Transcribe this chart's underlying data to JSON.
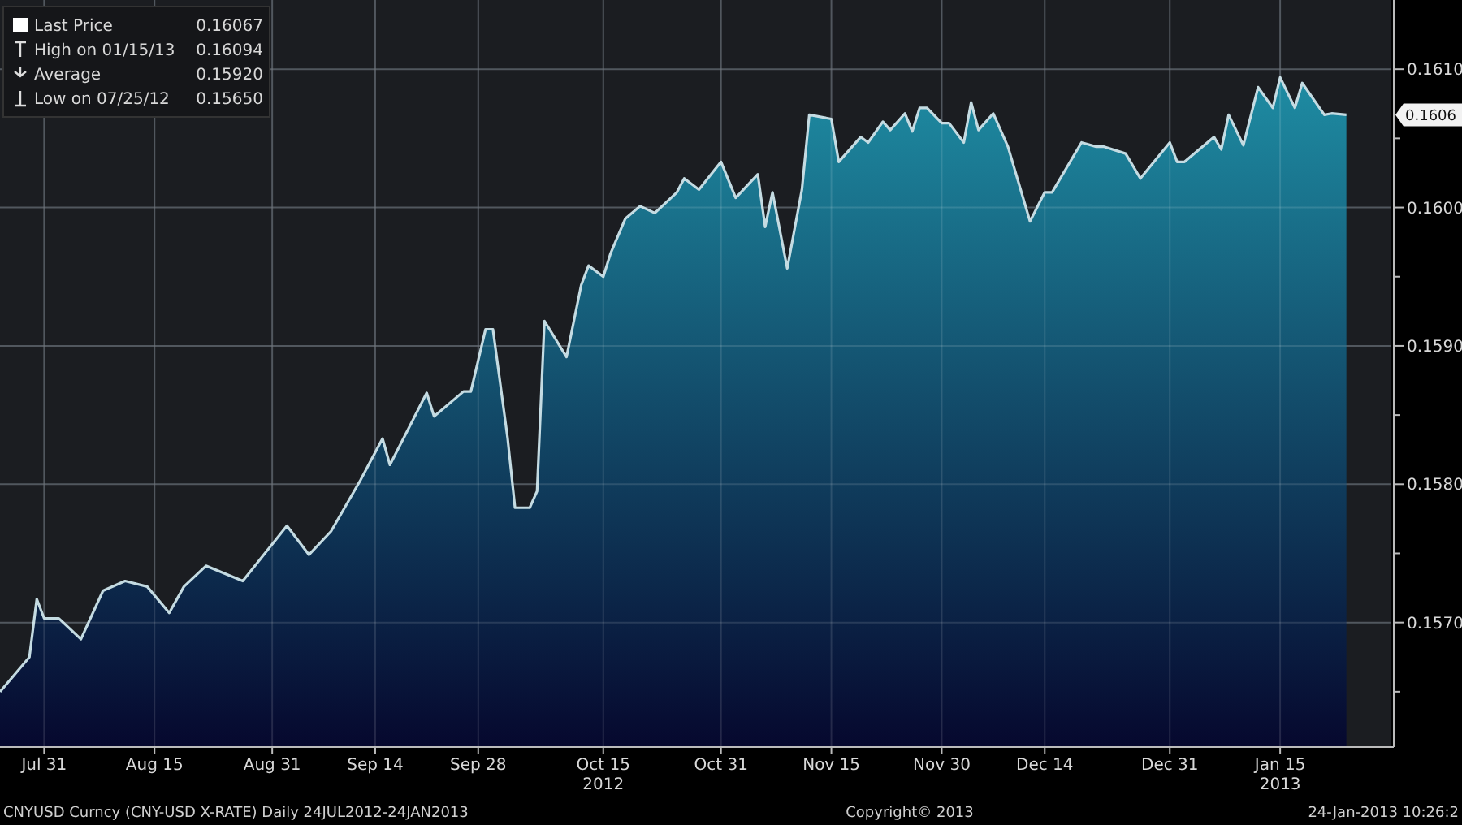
{
  "chart_data": {
    "type": "area",
    "x": [
      "2012-07-25",
      "2012-07-29",
      "2012-07-30",
      "2012-07-31",
      "2012-08-02",
      "2012-08-05",
      "2012-08-08",
      "2012-08-11",
      "2012-08-14",
      "2012-08-17",
      "2012-08-19",
      "2012-08-22",
      "2012-08-27",
      "2012-09-02",
      "2012-09-05",
      "2012-09-08",
      "2012-09-12",
      "2012-09-15",
      "2012-09-16",
      "2012-09-21",
      "2012-09-22",
      "2012-09-26",
      "2012-09-27",
      "2012-09-29",
      "2012-09-30",
      "2012-10-02",
      "2012-10-03",
      "2012-10-05",
      "2012-10-06",
      "2012-10-07",
      "2012-10-10",
      "2012-10-12",
      "2012-10-13",
      "2012-10-15",
      "2012-10-16",
      "2012-10-18",
      "2012-10-20",
      "2012-10-22",
      "2012-10-25",
      "2012-10-26",
      "2012-10-28",
      "2012-10-31",
      "2012-11-02",
      "2012-11-05",
      "2012-11-06",
      "2012-11-07",
      "2012-11-09",
      "2012-11-11",
      "2012-11-12",
      "2012-11-15",
      "2012-11-16",
      "2012-11-19",
      "2012-11-20",
      "2012-11-22",
      "2012-11-23",
      "2012-11-25",
      "2012-11-26",
      "2012-11-27",
      "2012-11-28",
      "2012-11-30",
      "2012-12-01",
      "2012-12-03",
      "2012-12-04",
      "2012-12-05",
      "2012-12-07",
      "2012-12-09",
      "2012-12-12",
      "2012-12-14",
      "2012-12-15",
      "2012-12-19",
      "2012-12-21",
      "2012-12-22",
      "2012-12-25",
      "2012-12-27",
      "2012-12-31",
      "2013-01-01",
      "2013-01-02",
      "2013-01-06",
      "2013-01-07",
      "2013-01-08",
      "2013-01-10",
      "2013-01-12",
      "2013-01-14",
      "2013-01-15",
      "2013-01-17",
      "2013-01-18",
      "2013-01-21",
      "2013-01-22",
      "2013-01-24"
    ],
    "series": [
      {
        "color": "#1e8ca3",
        "values": [
          0.1565,
          0.15675,
          0.15717,
          0.15703,
          0.15703,
          0.15688,
          0.15723,
          0.1573,
          0.15726,
          0.15707,
          0.15726,
          0.15741,
          0.1573,
          0.1577,
          0.15749,
          0.15766,
          0.15803,
          0.15833,
          0.15814,
          0.15866,
          0.15849,
          0.15867,
          0.15867,
          0.15912,
          0.15912,
          0.15833,
          0.15783,
          0.15783,
          0.15795,
          0.15918,
          0.15892,
          0.15944,
          0.15958,
          0.1595,
          0.15967,
          0.15992,
          0.16001,
          0.15996,
          0.16011,
          0.16021,
          0.16013,
          0.16033,
          0.16007,
          0.16024,
          0.15986,
          0.16011,
          0.15956,
          0.16013,
          0.16067,
          0.16064,
          0.16033,
          0.16051,
          0.16047,
          0.16062,
          0.16056,
          0.16068,
          0.16055,
          0.16072,
          0.16072,
          0.16061,
          0.16061,
          0.16047,
          0.16076,
          0.16056,
          0.16068,
          0.16044,
          0.1599,
          0.16011,
          0.16011,
          0.16047,
          0.16044,
          0.16044,
          0.16039,
          0.16021,
          0.16047,
          0.16033,
          0.16033,
          0.16051,
          0.16042,
          0.16067,
          0.16045,
          0.16087,
          0.16072,
          0.16094,
          0.16072,
          0.1609,
          0.16067,
          0.16068,
          0.16067
        ]
      }
    ],
    "xlim": [
      "2012-07-25",
      "2013-01-30"
    ],
    "xticks": [
      {
        "value": "2012-07-31",
        "label": "Jul 31"
      },
      {
        "value": "2012-08-15",
        "label": "Aug 15"
      },
      {
        "value": "2012-08-31",
        "label": "Aug 31"
      },
      {
        "value": "2012-09-14",
        "label": "Sep 14"
      },
      {
        "value": "2012-09-28",
        "label": "Sep 28"
      },
      {
        "value": "2012-10-15",
        "label": "Oct 15\n2012"
      },
      {
        "value": "2012-10-31",
        "label": "Oct 31"
      },
      {
        "value": "2012-11-15",
        "label": "Nov 15"
      },
      {
        "value": "2012-11-30",
        "label": "Nov 30"
      },
      {
        "value": "2012-12-14",
        "label": "Dec 14"
      },
      {
        "value": "2012-12-31",
        "label": "Dec 31"
      },
      {
        "value": "2013-01-15",
        "label": "Jan 15\n2013"
      }
    ],
    "ylim": [
      0.1561,
      0.1615
    ],
    "yticks": [
      {
        "value": 0.1565,
        "label": null
      },
      {
        "value": 0.157,
        "label": "0.1570"
      },
      {
        "value": 0.1575,
        "label": null
      },
      {
        "value": 0.158,
        "label": "0.1580"
      },
      {
        "value": 0.1585,
        "label": null
      },
      {
        "value": 0.159,
        "label": "0.1590"
      },
      {
        "value": 0.1595,
        "label": null
      },
      {
        "value": 0.16,
        "label": "0.1600"
      },
      {
        "value": 0.1605,
        "label": null
      },
      {
        "value": 0.161,
        "label": "0.1610"
      }
    ],
    "grid": true,
    "annotations": [
      "Last Price 0.16067",
      "High on 01/15/13 0.16094",
      "Average 0.15920",
      "Low on 07/25/12 0.15650",
      "CNYUSD Curncy (CNY-USD X-RATE)  Daily 24JUL2012-24JAN2013",
      "Copyright© 2013",
      "24-Jan-2013 10:26:2",
      "0.1606"
    ]
  }
}
